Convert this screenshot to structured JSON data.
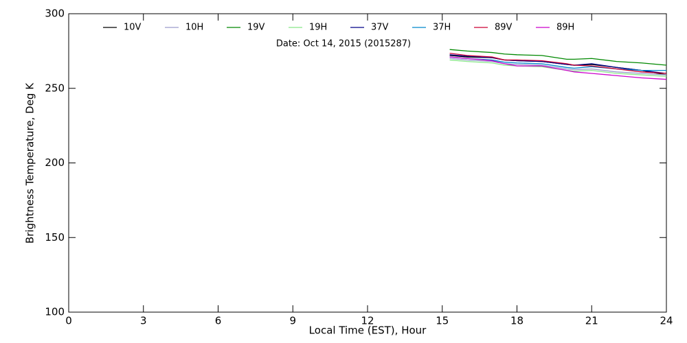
{
  "chart_data": {
    "type": "line",
    "annotation": "Date: Oct 14, 2015 (2015287)",
    "xlabel": "Local Time (EST), Hour",
    "ylabel": "Brightness Temperature, Deg K",
    "xlim": [
      0,
      24
    ],
    "xticks": [
      0,
      3,
      6,
      9,
      12,
      15,
      18,
      21,
      24
    ],
    "ylim": [
      100,
      300
    ],
    "yticks": [
      100,
      150,
      200,
      250,
      300
    ],
    "legend": "top",
    "x": [
      15.3,
      16,
      17,
      17.5,
      18,
      19,
      20,
      20.3,
      21,
      22,
      23,
      24
    ],
    "series": [
      {
        "name": "10V",
        "color": "#000000",
        "values": [
          272,
          271,
          270.5,
          269,
          268.5,
          268,
          266,
          265.5,
          266,
          264,
          262,
          259
        ]
      },
      {
        "name": "10H",
        "color": "#9a9acc",
        "values": [
          270,
          269,
          268,
          266.5,
          266,
          265.5,
          263,
          262.5,
          263,
          261,
          260,
          259
        ]
      },
      {
        "name": "19V",
        "color": "#008800",
        "values": [
          276,
          275,
          274,
          273,
          272.5,
          272,
          269.5,
          269.5,
          270,
          268,
          267,
          265.5
        ]
      },
      {
        "name": "19H",
        "color": "#88e888",
        "values": [
          269,
          268,
          267,
          265.5,
          265,
          264.5,
          262,
          261.5,
          262,
          260,
          259,
          258
        ]
      },
      {
        "name": "37V",
        "color": "#000088",
        "values": [
          272.5,
          271.5,
          270.5,
          269,
          268.5,
          268,
          266,
          265.5,
          266.5,
          264,
          262,
          260
        ]
      },
      {
        "name": "37H",
        "color": "#0088cc",
        "values": [
          271,
          270,
          269,
          267.5,
          267,
          266.5,
          264,
          263.5,
          264.5,
          263,
          262,
          262
        ]
      },
      {
        "name": "89V",
        "color": "#cc0033",
        "values": [
          273.5,
          272,
          271,
          269,
          269,
          268.5,
          266.5,
          265.5,
          265,
          263,
          261,
          260
        ]
      },
      {
        "name": "89H",
        "color": "#cc00cc",
        "values": [
          271,
          270,
          268.5,
          266.5,
          265,
          265,
          262,
          261,
          260,
          258.5,
          257,
          256
        ]
      }
    ]
  }
}
